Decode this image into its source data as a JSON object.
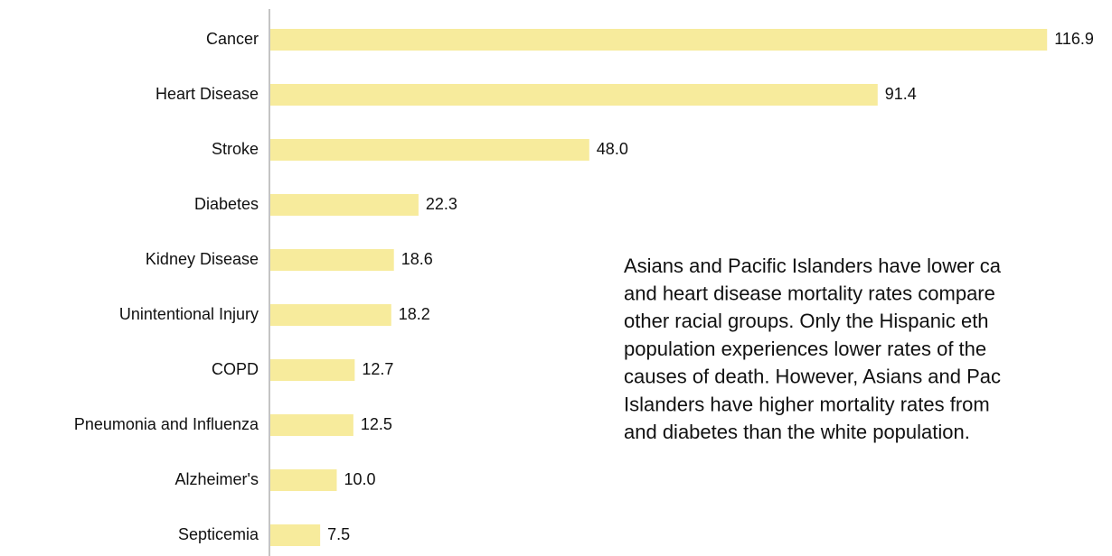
{
  "chart_data": {
    "type": "bar",
    "orientation": "horizontal",
    "categories": [
      "Cancer",
      "Heart Disease",
      "Stroke",
      "Diabetes",
      "Kidney Disease",
      "Unintentional Injury",
      "COPD",
      "Pneumonia and Influenza",
      "Alzheimer's",
      "Septicemia"
    ],
    "values": [
      116.9,
      91.4,
      48.0,
      22.3,
      18.6,
      18.2,
      12.7,
      12.5,
      10.0,
      7.5
    ],
    "value_labels": [
      "116.9",
      "91.4",
      "48.0",
      "22.3",
      "18.6",
      "18.2",
      "12.7",
      "12.5",
      "10.0",
      "7.5"
    ],
    "color": "#f7eb9c",
    "xlim": [
      0,
      120
    ],
    "annotation": [
      "Asians and Pacific Islanders have lower ca",
      "and heart disease mortality rates compare",
      "other racial groups. Only the Hispanic eth",
      "population experiences lower rates of the",
      "causes of death. However, Asians and Pac",
      "Islanders have higher mortality rates from",
      "and diabetes than the white population."
    ]
  }
}
